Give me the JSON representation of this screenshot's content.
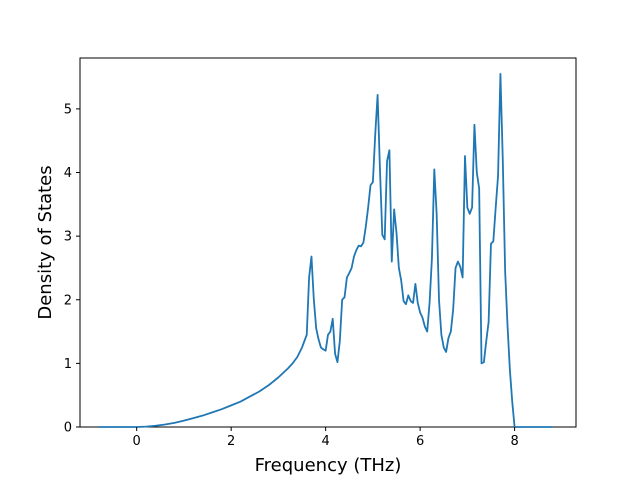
{
  "chart_data": {
    "type": "line",
    "title": "",
    "xlabel": "Frequency (THz)",
    "ylabel": "Density of States",
    "xlim": [
      -1.2,
      9.3
    ],
    "ylim": [
      0,
      5.8
    ],
    "xticks": [
      0,
      2,
      4,
      6,
      8
    ],
    "yticks": [
      0,
      1,
      2,
      3,
      4,
      5
    ],
    "grid": false,
    "legend": "none",
    "color": "#1f77b4",
    "series": [
      {
        "x": [
          -0.8,
          -0.6,
          -0.4,
          -0.2,
          0.0,
          0.2,
          0.4,
          0.6,
          0.8,
          1.0,
          1.2,
          1.4,
          1.6,
          1.8,
          2.0,
          2.2,
          2.4,
          2.6,
          2.8,
          3.0,
          3.2,
          3.3,
          3.4,
          3.5,
          3.6,
          3.65,
          3.7,
          3.75,
          3.8,
          3.85,
          3.9,
          3.95,
          4.0,
          4.05,
          4.1,
          4.15,
          4.2,
          4.25,
          4.3,
          4.35,
          4.4,
          4.45,
          4.5,
          4.55,
          4.6,
          4.65,
          4.7,
          4.75,
          4.8,
          4.85,
          4.9,
          4.95,
          5.0,
          5.05,
          5.1,
          5.15,
          5.2,
          5.25,
          5.3,
          5.35,
          5.4,
          5.45,
          5.5,
          5.55,
          5.6,
          5.65,
          5.7,
          5.75,
          5.8,
          5.85,
          5.9,
          5.95,
          6.0,
          6.05,
          6.1,
          6.15,
          6.2,
          6.25,
          6.3,
          6.35,
          6.4,
          6.45,
          6.5,
          6.55,
          6.6,
          6.65,
          6.7,
          6.75,
          6.8,
          6.85,
          6.9,
          6.95,
          7.0,
          7.05,
          7.1,
          7.15,
          7.2,
          7.25,
          7.3,
          7.35,
          7.4,
          7.45,
          7.5,
          7.55,
          7.6,
          7.65,
          7.7,
          7.75,
          7.8,
          7.85,
          7.9,
          7.95,
          8.0,
          8.1,
          8.3,
          8.5,
          8.8
        ],
        "values": [
          0,
          0,
          0,
          0,
          0,
          0.006,
          0.02,
          0.04,
          0.065,
          0.1,
          0.14,
          0.18,
          0.23,
          0.28,
          0.34,
          0.4,
          0.48,
          0.56,
          0.66,
          0.78,
          0.92,
          1.0,
          1.1,
          1.25,
          1.45,
          2.35,
          2.68,
          2.0,
          1.55,
          1.38,
          1.25,
          1.22,
          1.2,
          1.45,
          1.5,
          1.7,
          1.15,
          1.02,
          1.35,
          2.0,
          2.04,
          2.35,
          2.42,
          2.5,
          2.68,
          2.78,
          2.85,
          2.84,
          2.9,
          3.15,
          3.45,
          3.8,
          3.85,
          4.6,
          5.22,
          4.05,
          3.02,
          2.95,
          4.18,
          4.35,
          2.6,
          3.42,
          3.05,
          2.5,
          2.3,
          1.98,
          1.93,
          2.07,
          1.98,
          1.95,
          2.25,
          1.95,
          1.8,
          1.72,
          1.58,
          1.5,
          1.95,
          2.65,
          4.05,
          3.35,
          2.0,
          1.45,
          1.25,
          1.18,
          1.4,
          1.5,
          1.85,
          2.5,
          2.6,
          2.52,
          2.35,
          4.26,
          3.45,
          3.35,
          3.45,
          4.75,
          4.0,
          3.75,
          1.0,
          1.02,
          1.35,
          1.65,
          2.88,
          2.92,
          3.45,
          3.95,
          5.55,
          4.2,
          2.45,
          1.6,
          0.9,
          0.4,
          0,
          0,
          0,
          0,
          0
        ]
      }
    ]
  }
}
